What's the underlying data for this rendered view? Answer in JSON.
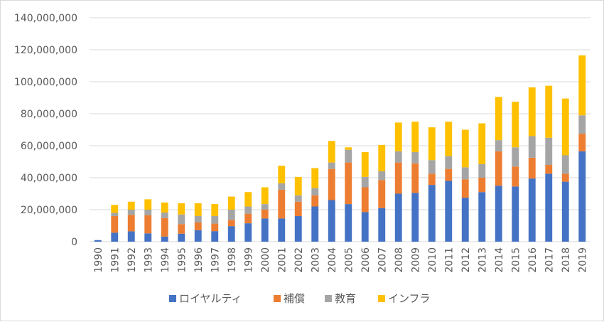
{
  "chart_data": {
    "type": "bar",
    "stacked": true,
    "title": "",
    "xlabel": "",
    "ylabel": "",
    "ylim": [
      0,
      140000000
    ],
    "y_ticks": [
      0,
      20000000,
      40000000,
      60000000,
      80000000,
      100000000,
      120000000,
      140000000
    ],
    "y_tick_labels": [
      "0",
      "20,000,000",
      "40,000,000",
      "60,000,000",
      "80,000,000",
      "100,000,000",
      "120,000,000",
      "140,000,000"
    ],
    "grid": true,
    "legend_position": "bottom",
    "categories": [
      "1990",
      "1991",
      "1992",
      "1993",
      "1994",
      "1995",
      "1996",
      "1997",
      "1998",
      "1999",
      "2000",
      "2001",
      "2002",
      "2003",
      "2004",
      "2005",
      "2006",
      "2007",
      "2008",
      "2009",
      "2010",
      "2011",
      "2012",
      "2013",
      "2014",
      "2015",
      "2016",
      "2017",
      "2018",
      "2019"
    ],
    "series": [
      {
        "name": "ロイヤルティ",
        "color": "#4472c4",
        "values": [
          1000000,
          5600000,
          6500000,
          5200000,
          3200000,
          5000000,
          7200000,
          6600000,
          9700000,
          11500000,
          14500000,
          14500000,
          16000000,
          22000000,
          26000000,
          23500000,
          18500000,
          21000000,
          30000000,
          30500000,
          35500000,
          38000000,
          27500000,
          31000000,
          35000000,
          34500000,
          39500000,
          42500000,
          37500000,
          56500000
        ]
      },
      {
        "name": "補償",
        "color": "#ed7d31",
        "values": [
          0,
          10400000,
          10300000,
          11400000,
          11600000,
          6000000,
          4800000,
          4700000,
          3800000,
          6000000,
          5500000,
          18000000,
          9000000,
          7000000,
          19500000,
          26000000,
          15500000,
          17500000,
          19500000,
          18500000,
          7000000,
          7500000,
          11500000,
          9000000,
          21500000,
          12500000,
          13000000,
          5500000,
          5000000,
          11000000
        ]
      },
      {
        "name": "教育",
        "color": "#a5a5a5",
        "values": [
          0,
          2000000,
          3200000,
          3400000,
          3400000,
          6000000,
          4000000,
          4700000,
          6500000,
          4500000,
          3500000,
          4000000,
          4000000,
          4500000,
          4000000,
          8000000,
          6500000,
          5500000,
          7000000,
          7000000,
          8500000,
          8000000,
          7500000,
          8500000,
          7000000,
          12000000,
          13500000,
          17000000,
          11500000,
          11500000
        ]
      },
      {
        "name": "インフラ",
        "color": "#ffc000",
        "values": [
          0,
          5000000,
          5000000,
          6500000,
          6300000,
          7000000,
          8000000,
          7500000,
          8200000,
          9000000,
          10500000,
          11000000,
          11500000,
          12500000,
          13500000,
          1500000,
          15500000,
          16500000,
          18000000,
          19000000,
          20500000,
          21500000,
          23500000,
          25500000,
          27000000,
          28500000,
          30500000,
          32500000,
          35500000,
          37500000
        ]
      }
    ]
  }
}
